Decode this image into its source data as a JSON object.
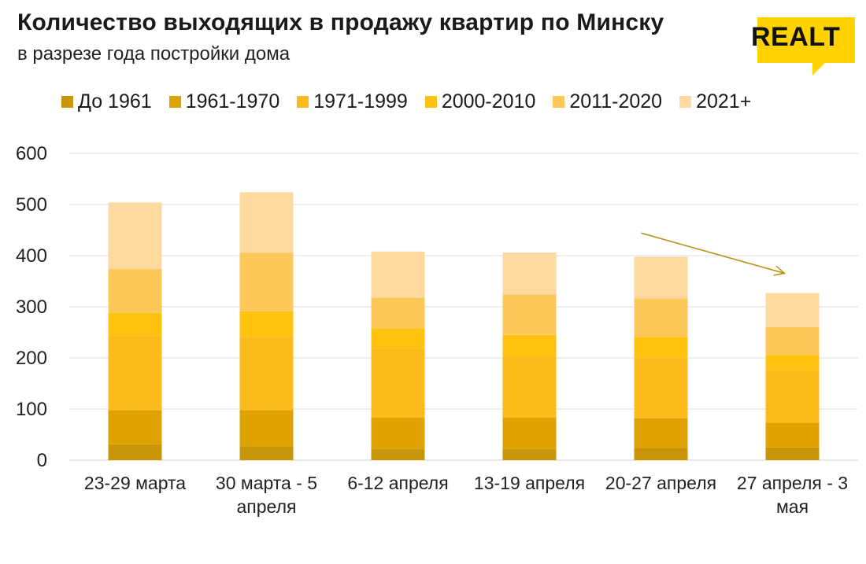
{
  "header": {
    "title": "Количество выходящих в продажу квартир по Минску",
    "subtitle": "в разрезе года постройки дома"
  },
  "logo": {
    "text": "REALT",
    "color": "#FFD200"
  },
  "chart_data": {
    "type": "bar",
    "stacked": true,
    "categories": [
      [
        "23-29 марта"
      ],
      [
        "30 марта - 5",
        "апреля"
      ],
      [
        "6-12 апреля"
      ],
      [
        "13-19 апреля"
      ],
      [
        "20-27 апреля"
      ],
      [
        "27 апреля - 3",
        "мая"
      ]
    ],
    "series": [
      {
        "name": "До 1961",
        "color": "#C9960A",
        "values": [
          31,
          27,
          22,
          22,
          24,
          25
        ]
      },
      {
        "name": "1961-1970",
        "color": "#E0A200",
        "values": [
          67,
          71,
          61,
          61,
          58,
          48
        ]
      },
      {
        "name": "1971-1999",
        "color": "#FDBB1B",
        "values": [
          146,
          143,
          135,
          120,
          119,
          103
        ]
      },
      {
        "name": "2000-2010",
        "color": "#FFC20E",
        "values": [
          44,
          50,
          40,
          42,
          40,
          30
        ]
      },
      {
        "name": "2011-2020",
        "color": "#FCC958",
        "values": [
          86,
          115,
          60,
          79,
          75,
          54
        ]
      },
      {
        "name": "2021+",
        "color": "#FDD9A0",
        "values": [
          130,
          118,
          90,
          82,
          82,
          67
        ]
      }
    ],
    "ylim": [
      0,
      600
    ],
    "yticks": [
      0,
      100,
      200,
      300,
      400,
      500,
      600
    ],
    "grid": true,
    "legend_position": "top",
    "trend_arrow_color": "#B8961E"
  }
}
